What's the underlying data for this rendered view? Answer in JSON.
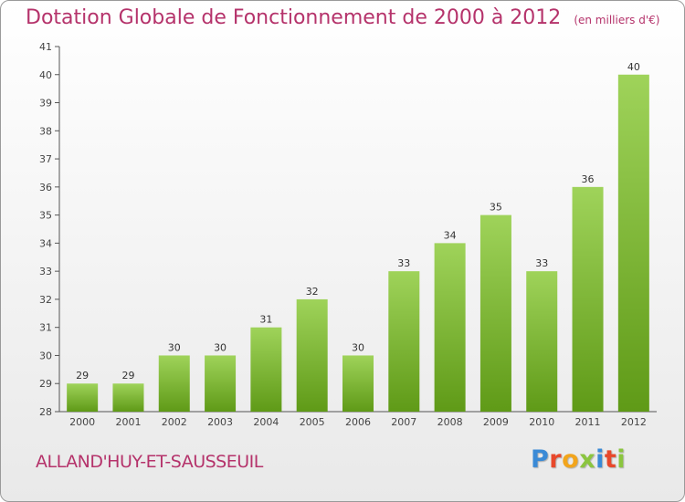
{
  "title": "Dotation Globale de Fonctionnement de 2000 à 2012",
  "unit_note": "(en milliers d'€)",
  "commune": "ALLAND'HUY-ET-SAUSSEUIL",
  "logo": {
    "text": "Proxiti",
    "letter_colors": [
      "#3a8ad6",
      "#e8482b",
      "#f2a51c",
      "#8bc53f",
      "#3a8ad6",
      "#e8482b",
      "#8bc53f"
    ]
  },
  "colors": {
    "bar_top": "#9fd35a",
    "bar_bottom": "#5f9a17",
    "accent": "#b5336b"
  },
  "chart_data": {
    "type": "bar",
    "categories": [
      "2000",
      "2001",
      "2002",
      "2003",
      "2004",
      "2005",
      "2006",
      "2007",
      "2008",
      "2009",
      "2010",
      "2011",
      "2012"
    ],
    "values": [
      29,
      29,
      30,
      30,
      31,
      32,
      30,
      33,
      34,
      35,
      33,
      36,
      40
    ],
    "data_labels": [
      "29",
      "29",
      "30",
      "30",
      "31",
      "32",
      "30",
      "33",
      "34",
      "35",
      "33",
      "36",
      "40"
    ],
    "ylim": [
      28,
      41
    ],
    "yticks": [
      "28",
      "29",
      "30",
      "31",
      "32",
      "33",
      "34",
      "35",
      "36",
      "37",
      "38",
      "39",
      "40",
      "41"
    ],
    "title": "Dotation Globale de Fonctionnement de 2000 à 2012",
    "xlabel": "",
    "ylabel": "",
    "grid": false
  }
}
